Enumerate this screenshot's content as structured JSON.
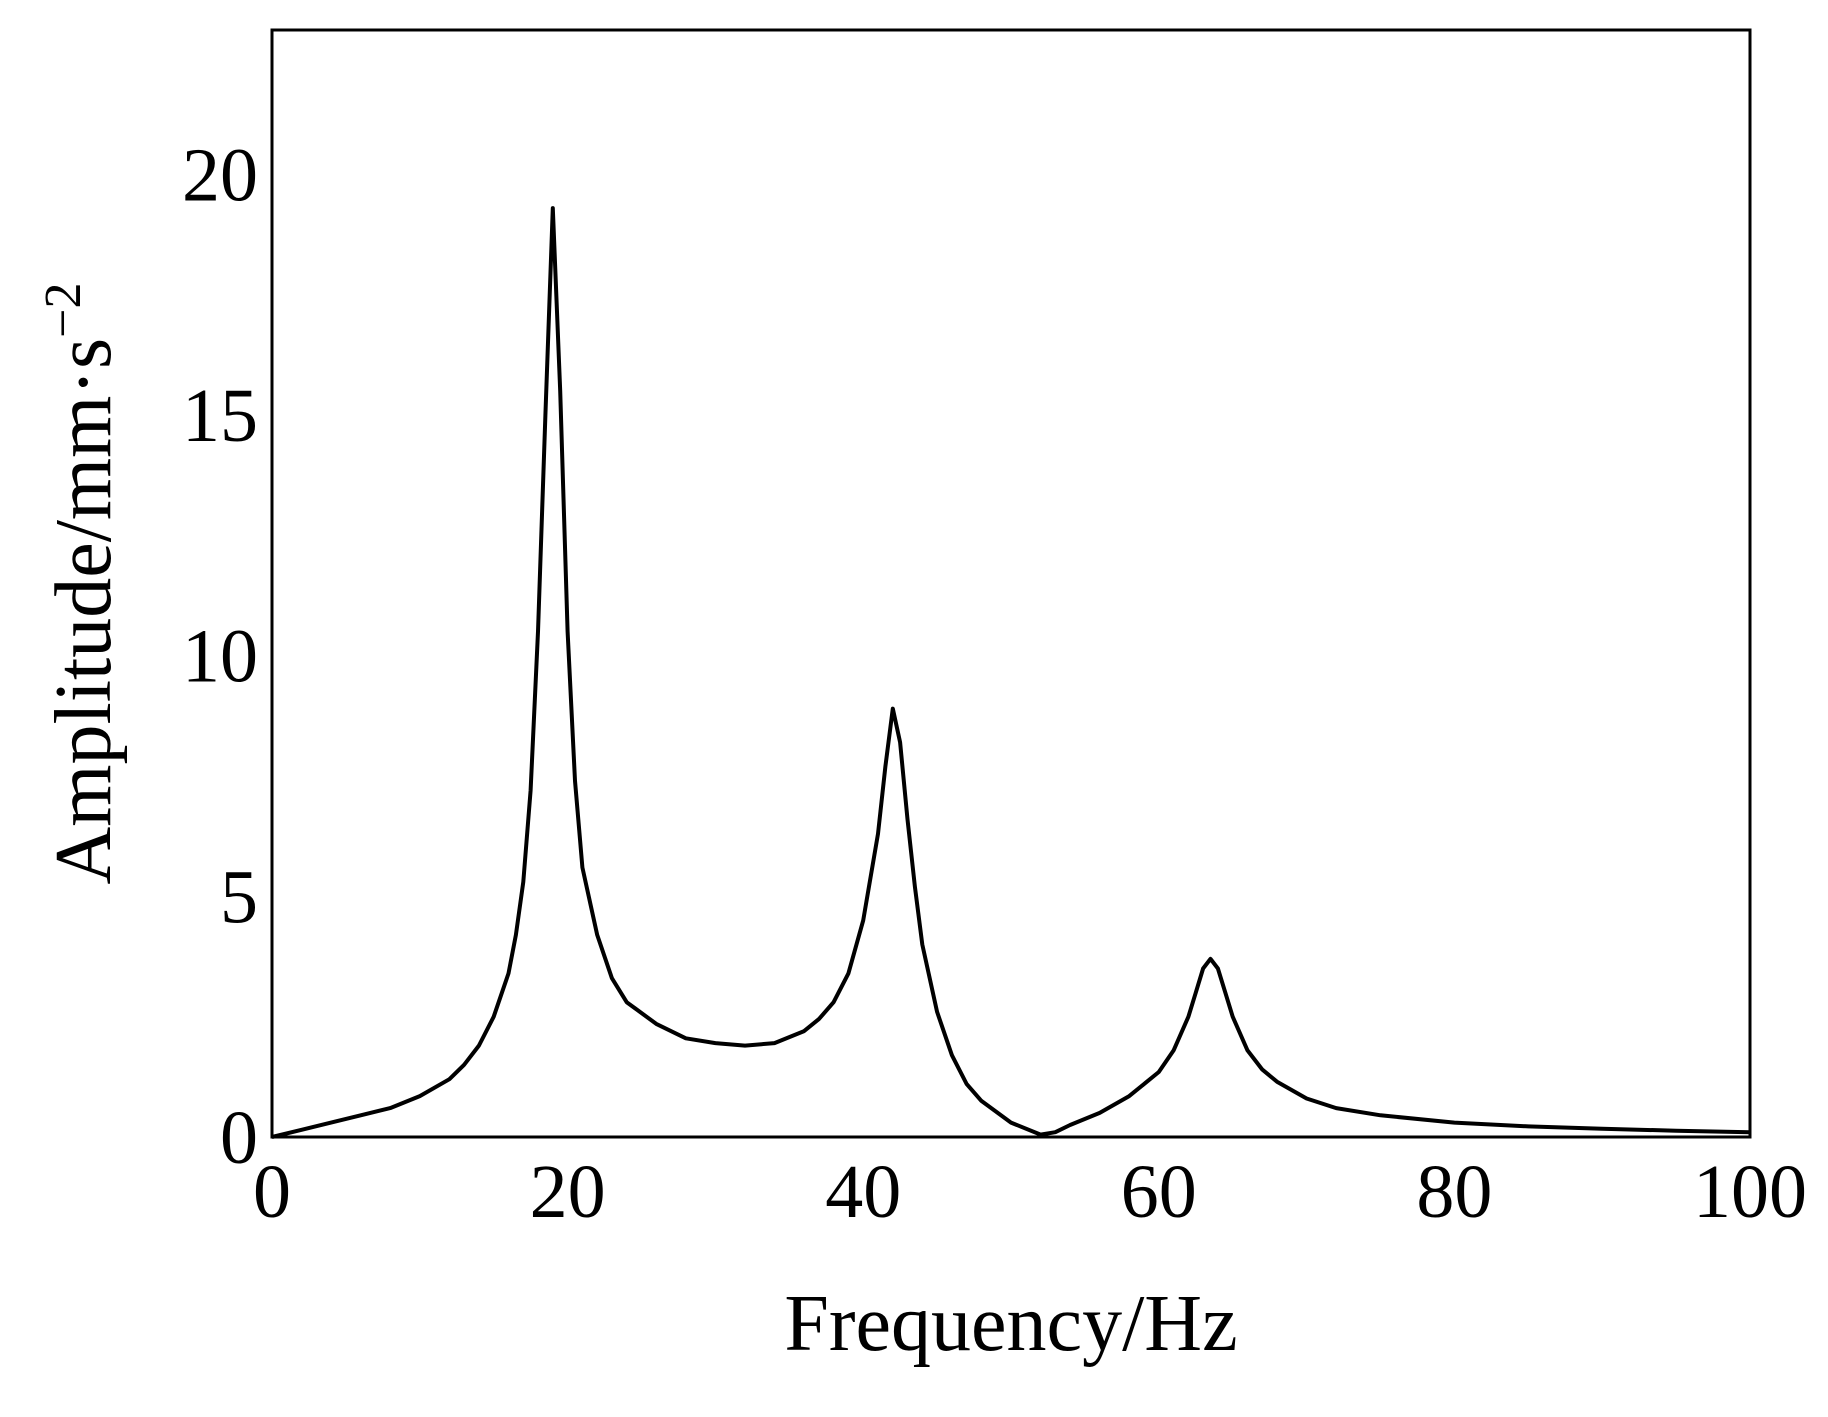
{
  "chart_data": {
    "type": "line",
    "title": "",
    "xlabel": "Frequency/Hz",
    "ylabel": "Amplitude/mm·s",
    "ylabel_superscript": "−2",
    "xlim": [
      0,
      100
    ],
    "ylim": [
      0,
      23
    ],
    "x_ticks": [
      0,
      20,
      40,
      60,
      80,
      100
    ],
    "y_ticks": [
      0,
      5,
      10,
      15,
      20
    ],
    "x_tick_labels": [
      "0",
      "20",
      "40",
      "60",
      "80",
      "100"
    ],
    "y_tick_labels": [
      "0",
      "5",
      "10",
      "15",
      "20"
    ],
    "grid": false,
    "legend": "none",
    "line_color": "#000000",
    "series": [
      {
        "x": [
          0,
          2,
          4,
          6,
          8,
          10,
          12,
          13,
          14,
          15,
          16,
          16.5,
          17,
          17.5,
          18,
          18.5,
          19,
          19.5,
          20,
          20.5,
          21,
          22,
          23,
          24,
          26,
          28,
          30,
          32,
          34,
          36,
          37,
          38,
          39,
          40,
          41,
          41.5,
          42,
          42.5,
          43,
          43.5,
          44,
          45,
          46,
          47,
          48,
          50,
          52,
          53,
          54,
          56,
          58,
          60,
          61,
          62,
          62.5,
          63,
          63.5,
          64,
          64.5,
          65,
          66,
          67,
          68,
          70,
          72,
          75,
          80,
          85,
          90,
          95,
          100
        ],
        "y": [
          0,
          0.15,
          0.3,
          0.45,
          0.6,
          0.85,
          1.2,
          1.5,
          1.9,
          2.5,
          3.4,
          4.2,
          5.3,
          7.2,
          10.5,
          15,
          19.3,
          15.5,
          10.5,
          7.4,
          5.6,
          4.2,
          3.3,
          2.8,
          2.35,
          2.05,
          1.95,
          1.9,
          1.95,
          2.2,
          2.45,
          2.8,
          3.4,
          4.5,
          6.3,
          7.7,
          8.9,
          8.2,
          6.6,
          5.2,
          4.0,
          2.6,
          1.7,
          1.1,
          0.75,
          0.3,
          0.05,
          0.1,
          0.25,
          0.5,
          0.85,
          1.35,
          1.8,
          2.5,
          3.0,
          3.5,
          3.7,
          3.5,
          3.0,
          2.5,
          1.8,
          1.4,
          1.15,
          0.8,
          0.6,
          0.45,
          0.3,
          0.22,
          0.17,
          0.13,
          0.1
        ]
      }
    ]
  }
}
